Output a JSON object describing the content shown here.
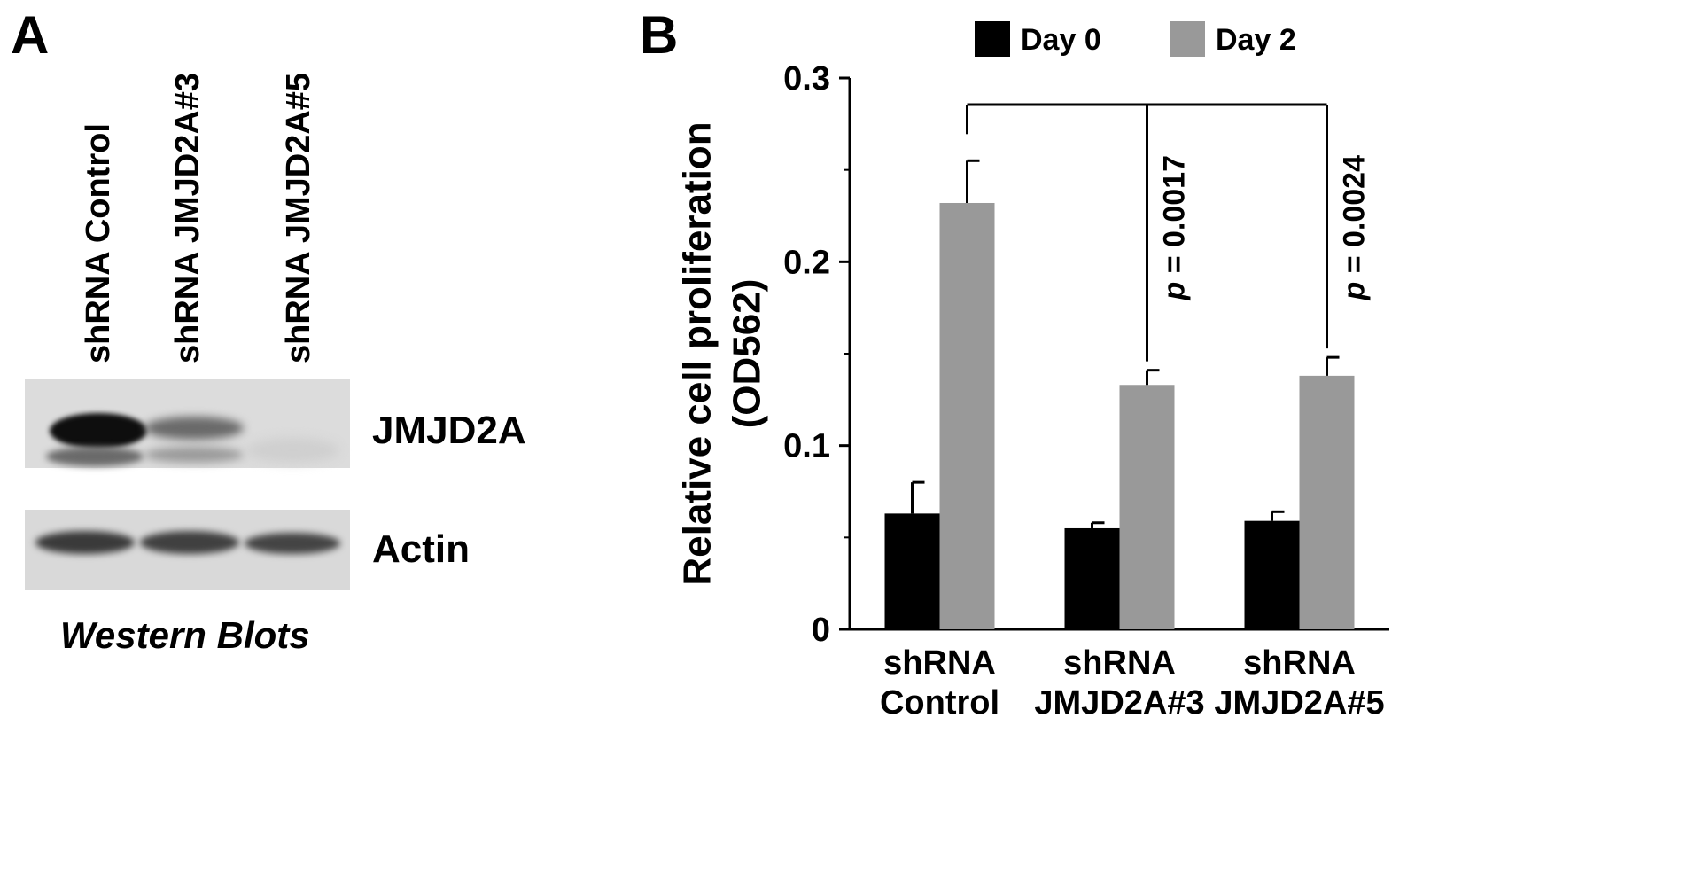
{
  "panel_a": {
    "letter": "A",
    "lanes": [
      "shRNA Control",
      "shRNA JMJD2A#3",
      "shRNA JMJD2A#5"
    ],
    "blots": [
      "JMJD2A",
      "Actin"
    ],
    "caption": "Western Blots"
  },
  "panel_b": {
    "letter": "B"
  },
  "chart_data": {
    "type": "bar",
    "categories": [
      [
        "shRNA",
        "Control"
      ],
      [
        "shRNA",
        "JMJD2A#3"
      ],
      [
        "shRNA",
        "JMJD2A#5"
      ]
    ],
    "ylabel": [
      "Relative cell proliferation",
      "(OD562)"
    ],
    "ylim": [
      0,
      0.3
    ],
    "yticks": [
      0,
      0.1,
      0.2,
      0.3
    ],
    "ytick_labels": [
      "0",
      "0.1",
      "0.2",
      "0.3"
    ],
    "legend": {
      "position": "top"
    },
    "series": [
      {
        "name": "Day 0",
        "color": "#000000",
        "values": [
          0.063,
          0.055,
          0.059
        ],
        "errors": [
          0.017,
          0.003,
          0.005
        ]
      },
      {
        "name": "Day 2",
        "color": "#999999",
        "values": [
          0.232,
          0.133,
          0.138
        ],
        "errors": [
          0.023,
          0.008,
          0.01
        ]
      }
    ],
    "annotations": [
      {
        "label_italic": "p",
        "label_rest": " = 0.0017",
        "from_category": 0,
        "to_category": 1
      },
      {
        "label_italic": "p",
        "label_rest": " = 0.0024",
        "from_category": 0,
        "to_category": 2
      }
    ]
  }
}
